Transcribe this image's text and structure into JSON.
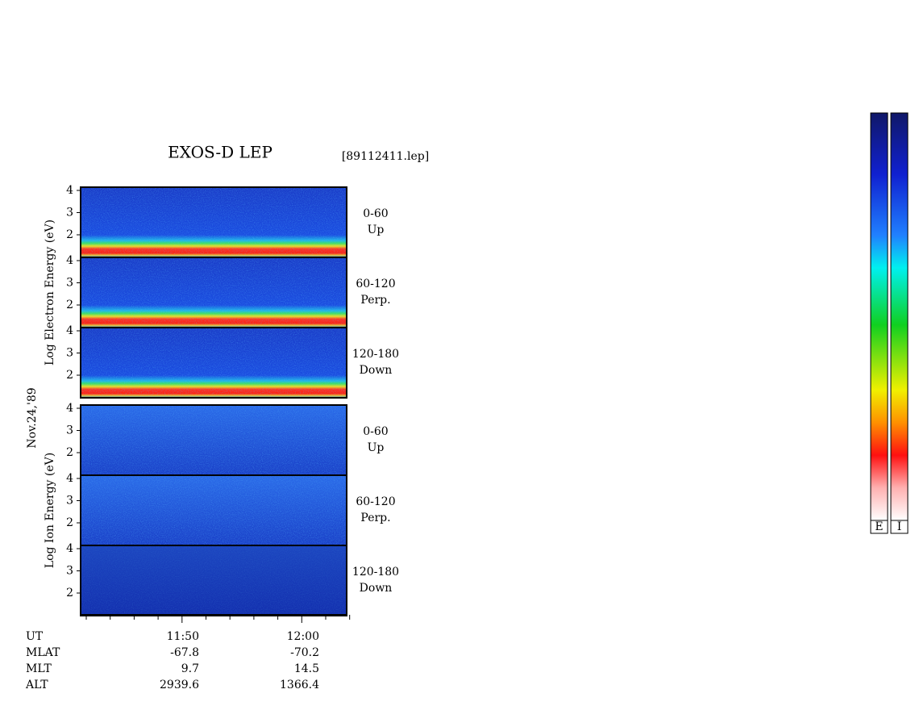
{
  "header": {
    "title": "EXOS-D LEP",
    "file": "[89112411.lep]"
  },
  "date": "Nov.24,'89",
  "groups": [
    {
      "axis_label": "Log Electron Energy (eV)",
      "panels": [
        {
          "angle": "0-60",
          "direction": "Up",
          "yticks": [
            "4",
            "3",
            "2"
          ]
        },
        {
          "angle": "60-120",
          "direction": "Perp.",
          "yticks": [
            "4",
            "3",
            "2"
          ]
        },
        {
          "angle": "120-180",
          "direction": "Down",
          "yticks": [
            "4",
            "3",
            "2"
          ]
        }
      ]
    },
    {
      "axis_label": "Log Ion Energy (eV)",
      "panels": [
        {
          "angle": "0-60",
          "direction": "Up",
          "yticks": [
            "4",
            "3",
            "2"
          ]
        },
        {
          "angle": "60-120",
          "direction": "Perp.",
          "yticks": [
            "4",
            "3",
            "2"
          ]
        },
        {
          "angle": "120-180",
          "direction": "Down",
          "yticks": [
            "4",
            "3",
            "2"
          ]
        }
      ]
    }
  ],
  "color_bars": [
    "E",
    "I"
  ],
  "x_axis": {
    "rows": [
      {
        "name": "UT",
        "values": [
          "11:50",
          "12:00"
        ]
      },
      {
        "name": "MLAT",
        "values": [
          "-67.8",
          "-70.2"
        ]
      },
      {
        "name": "MLT",
        "values": [
          "9.7",
          "14.5"
        ]
      },
      {
        "name": "ALT",
        "values": [
          "2939.6",
          "1366.4"
        ]
      }
    ]
  }
}
